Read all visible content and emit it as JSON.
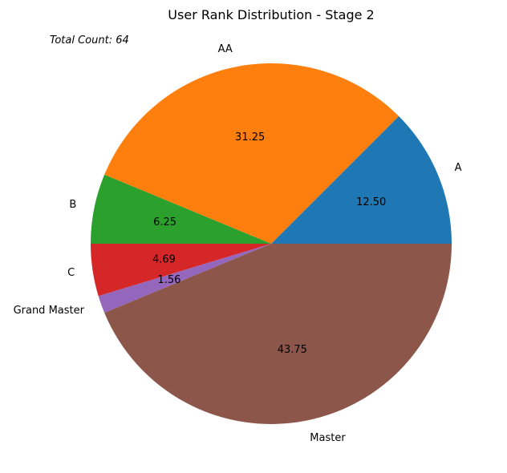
{
  "chart_data": {
    "type": "pie",
    "title": "User Rank Distribution - Stage 2",
    "annotation": "Total Count: 64",
    "slices": [
      {
        "label": "A",
        "value": 12.5,
        "pct_label": "12.50",
        "color": "#1f77b4"
      },
      {
        "label": "AA",
        "value": 31.25,
        "pct_label": "31.25",
        "color": "#ff7f0e"
      },
      {
        "label": "B",
        "value": 6.25,
        "pct_label": "6.25",
        "color": "#2ca02c"
      },
      {
        "label": "C",
        "value": 4.69,
        "pct_label": "4.69",
        "color": "#d62728"
      },
      {
        "label": "Grand Master",
        "value": 1.56,
        "pct_label": "1.56",
        "color": "#9467bd"
      },
      {
        "label": "Master",
        "value": 43.75,
        "pct_label": "43.75",
        "color": "#8c564b"
      }
    ],
    "start_angle_deg": 0,
    "direction": "counterclockwise"
  }
}
